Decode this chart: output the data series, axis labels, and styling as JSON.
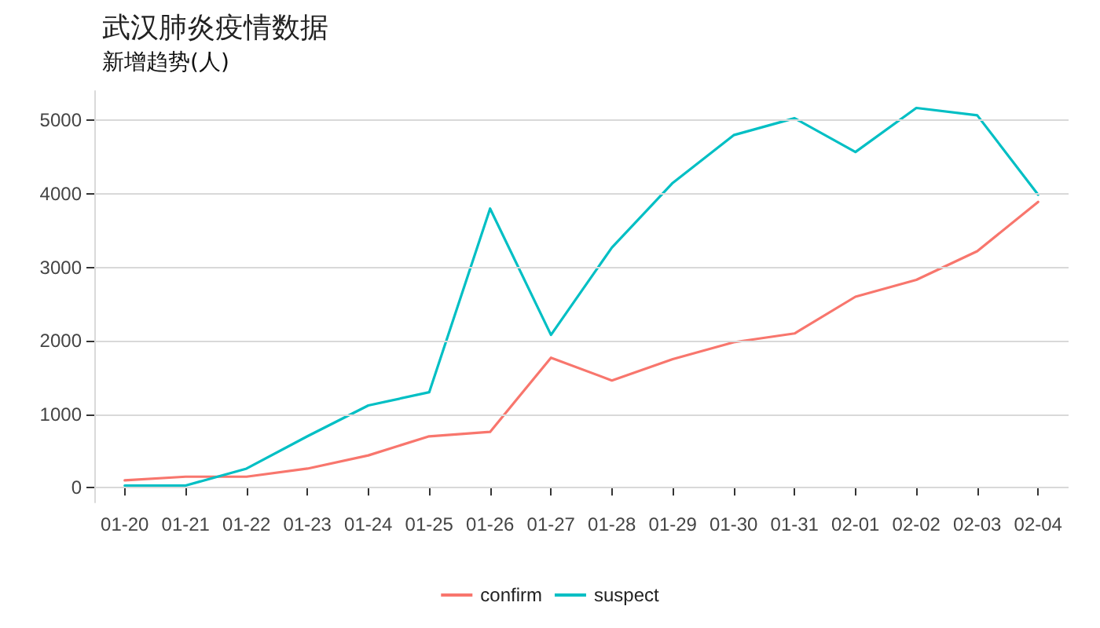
{
  "chart_data": {
    "type": "line",
    "title": "武汉肺炎疫情数据",
    "subtitle": "新增趋势(人)",
    "categories": [
      "01-20",
      "01-21",
      "01-22",
      "01-23",
      "01-24",
      "01-25",
      "01-26",
      "01-27",
      "01-28",
      "01-29",
      "01-30",
      "01-31",
      "02-01",
      "02-02",
      "02-03",
      "02-04"
    ],
    "series": [
      {
        "name": "confirm",
        "color": "#f8766d",
        "values": [
          100,
          150,
          150,
          260,
          440,
          700,
          760,
          1770,
          1460,
          1750,
          1980,
          2100,
          2600,
          2830,
          3220,
          3890
        ]
      },
      {
        "name": "suspect",
        "color": "#00bfc4",
        "values": [
          30,
          30,
          260,
          700,
          1120,
          1300,
          3800,
          2080,
          3270,
          4150,
          4800,
          5030,
          4570,
          5170,
          5070,
          3990
        ]
      }
    ],
    "ylim": [
      -200,
      5400
    ],
    "yticks": [
      0,
      1000,
      2000,
      3000,
      4000,
      5000
    ],
    "grid": "y",
    "legend": "bottom",
    "marker": "none",
    "line_style": "solid"
  }
}
